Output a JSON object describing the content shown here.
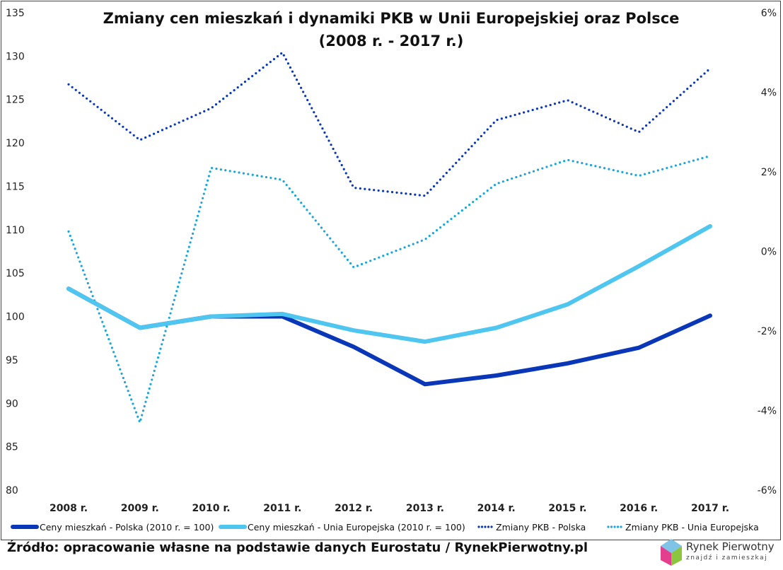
{
  "chart_data": {
    "type": "line",
    "title": "Zmiany cen mieszkań i dynamiki PKB w Unii Europejskiej oraz Polsce",
    "subtitle": "(2008 r. - 2017 r.)",
    "categories": [
      "2008 r.",
      "2009 r.",
      "2010 r.",
      "2011 r.",
      "2012 r.",
      "2013 r.",
      "2014 r.",
      "2015 r.",
      "2016 r.",
      "2017 r."
    ],
    "y_left": {
      "ylim": [
        80,
        135
      ],
      "ticks": [
        "80",
        "85",
        "90",
        "95",
        "100",
        "105",
        "110",
        "115",
        "120",
        "125",
        "130",
        "135"
      ]
    },
    "y_right": {
      "ylim": [
        -6,
        6
      ],
      "ticks": [
        "-6%",
        "-4%",
        "-2%",
        "0%",
        "2%",
        "4%",
        "6%"
      ]
    },
    "grid": false,
    "legend": "bottom",
    "series": [
      {
        "name": "Ceny mieszkań - Polska (2010 r. = 100)",
        "axis": "left",
        "style": "solid",
        "color": "#0a36b8",
        "values": [
          103.2,
          98.7,
          100.0,
          100.0,
          96.5,
          92.2,
          93.2,
          94.6,
          96.4,
          100.1
        ]
      },
      {
        "name": "Ceny mieszkań - Unia Europejska (2010 r. = 100)",
        "axis": "left",
        "style": "solid",
        "color": "#4ec6f0",
        "values": [
          103.2,
          98.7,
          100.0,
          100.3,
          98.4,
          97.1,
          98.7,
          101.4,
          105.8,
          110.4
        ]
      },
      {
        "name": "Zmiany PKB - Polska",
        "axis": "right",
        "style": "dotted",
        "color": "#0a36b8",
        "values": [
          4.2,
          2.8,
          3.6,
          5.0,
          1.6,
          1.4,
          3.3,
          3.8,
          3.0,
          4.6
        ]
      },
      {
        "name": "Zmiany PKB - Unia Europejska",
        "axis": "right",
        "style": "dotted",
        "color": "#1aa6dc",
        "values": [
          0.5,
          -4.3,
          2.1,
          1.8,
          -0.4,
          0.3,
          1.7,
          2.3,
          1.9,
          2.4
        ]
      }
    ]
  },
  "source": "Źródło: opracowanie własne na podstawie danych Eurostatu / RynekPierwotny.pl",
  "logo": {
    "name": "Rynek Pierwotny",
    "tagline": "znajdź i zamieszkaj"
  }
}
